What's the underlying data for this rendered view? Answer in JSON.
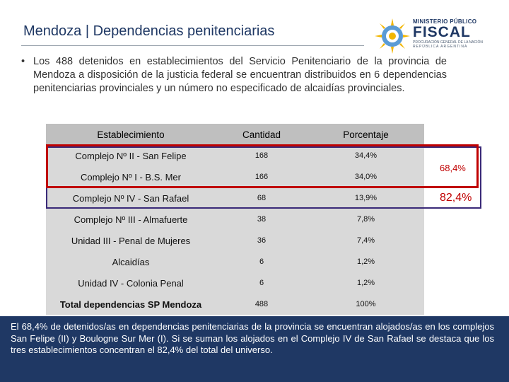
{
  "header": {
    "title": "Mendoza | Dependencias penitenciarias"
  },
  "logo": {
    "line1": "MINISTERIO PÚBLICO",
    "line2": "FISCAL",
    "line3": "PROCURACIÓN GENERAL DE LA NACIÓN",
    "line4": "REPÚBLICA ARGENTINA",
    "colors": {
      "sun": "#f2b600",
      "blue": "#5b9bd5",
      "dark": "#1f3864"
    }
  },
  "intro": {
    "bullet": "•",
    "text": "Los 488 detenidos en establecimientos del Servicio Penitenciario de la provincia de Mendoza a disposición de la justicia federal se encuentran distribuidos en 6 dependencias penitenciarias provinciales y un número no especificado de alcaidías provinciales."
  },
  "table": {
    "headers": [
      "Establecimiento",
      "Cantidad",
      "Porcentaje"
    ],
    "rows": [
      {
        "establecimiento": "Complejo Nº II - San Felipe",
        "cantidad": "168",
        "porcentaje": "34,4%"
      },
      {
        "establecimiento": "Complejo Nº I - B.S. Mer",
        "cantidad": "166",
        "porcentaje": "34,0%"
      },
      {
        "establecimiento": "Complejo Nº IV - San Rafael",
        "cantidad": "68",
        "porcentaje": "13,9%"
      },
      {
        "establecimiento": "Complejo Nº III - Almafuerte",
        "cantidad": "38",
        "porcentaje": "7,8%"
      },
      {
        "establecimiento": "Unidad III - Penal de Mujeres",
        "cantidad": "36",
        "porcentaje": "7,4%"
      },
      {
        "establecimiento": "Alcaidías",
        "cantidad": "6",
        "porcentaje": "1,2%"
      },
      {
        "establecimiento": "Unidad IV - Colonia Penal",
        "cantidad": "6",
        "porcentaje": "1,2%"
      }
    ],
    "total": {
      "establecimiento": "Total dependencias SP Mendoza",
      "cantidad": "488",
      "porcentaje": "100%"
    }
  },
  "annotations": {
    "pct_top2": "68,4%",
    "pct_top3": "82,4%",
    "colors": {
      "red": "#c00000",
      "purple": "#3a2a78"
    }
  },
  "footer": {
    "text": "El 68,4% de detenidos/as en dependencias penitenciarias de la provincia se encuentran alojados/as en los complejos San Felipe (II) y Boulogne Sur Mer (I). Si se suman los alojados en el Complejo IV de San Rafael se destaca que los tres establecimientos concentran el 82,4% del total del universo."
  }
}
